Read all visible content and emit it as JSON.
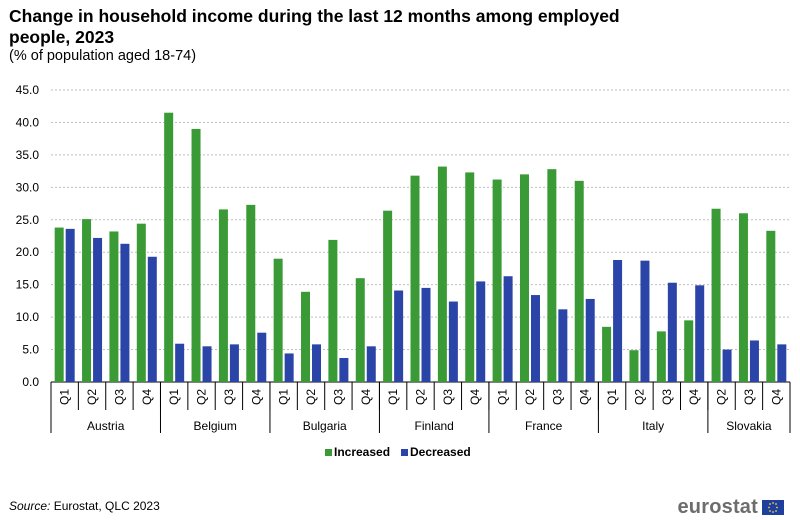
{
  "header": {
    "title": "Change in household income during the last 12 months among employed people, 2023",
    "subtitle": "(% of population aged 18-74)"
  },
  "footer": {
    "source_label": "Source:",
    "source_text": "Eurostat, QLC 2023",
    "logo_text": "eurostat"
  },
  "colors": {
    "increased": "#3a9a35",
    "decreased": "#2b44a8",
    "grid": "#bfbfbf"
  },
  "chart_data": {
    "type": "bar",
    "title": "Change in household income during the last 12 months among employed people, 2023",
    "subtitle": "(% of population aged 18-74)",
    "ylim": [
      0,
      45
    ],
    "yticks": [
      "0.0",
      "5.0",
      "10.0",
      "15.0",
      "20.0",
      "25.0",
      "30.0",
      "35.0",
      "40.0",
      "45.0"
    ],
    "grid": "horizontal dashed",
    "legend": "bottom-center",
    "groups": [
      {
        "name": "Austria",
        "categories": [
          "Q1",
          "Q2",
          "Q3",
          "Q4"
        ]
      },
      {
        "name": "Belgium",
        "categories": [
          "Q1",
          "Q2",
          "Q3",
          "Q4"
        ]
      },
      {
        "name": "Bulgaria",
        "categories": [
          "Q1",
          "Q2",
          "Q3",
          "Q4"
        ]
      },
      {
        "name": "Finland",
        "categories": [
          "Q1",
          "Q2",
          "Q3",
          "Q4"
        ]
      },
      {
        "name": "France",
        "categories": [
          "Q1",
          "Q2",
          "Q3",
          "Q4"
        ]
      },
      {
        "name": "Italy",
        "categories": [
          "Q1",
          "Q2",
          "Q3",
          "Q4"
        ]
      },
      {
        "name": "Slovakia",
        "categories": [
          "Q2",
          "Q3",
          "Q4"
        ]
      }
    ],
    "series": [
      {
        "name": "Increased",
        "values": [
          23.8,
          25.1,
          23.2,
          24.4,
          41.5,
          39.0,
          26.6,
          27.3,
          19.0,
          13.9,
          21.9,
          16.0,
          26.4,
          31.8,
          33.2,
          32.3,
          31.2,
          32.0,
          32.8,
          31.0,
          8.5,
          4.9,
          7.8,
          9.5,
          26.7,
          26.0,
          23.3
        ]
      },
      {
        "name": "Decreased",
        "values": [
          23.6,
          22.2,
          21.3,
          19.3,
          5.9,
          5.5,
          5.8,
          7.6,
          4.4,
          5.8,
          3.7,
          5.5,
          14.1,
          14.5,
          12.4,
          15.5,
          16.3,
          13.4,
          11.2,
          12.8,
          18.8,
          18.7,
          15.3,
          14.9,
          5.0,
          6.4,
          5.8
        ]
      }
    ]
  }
}
